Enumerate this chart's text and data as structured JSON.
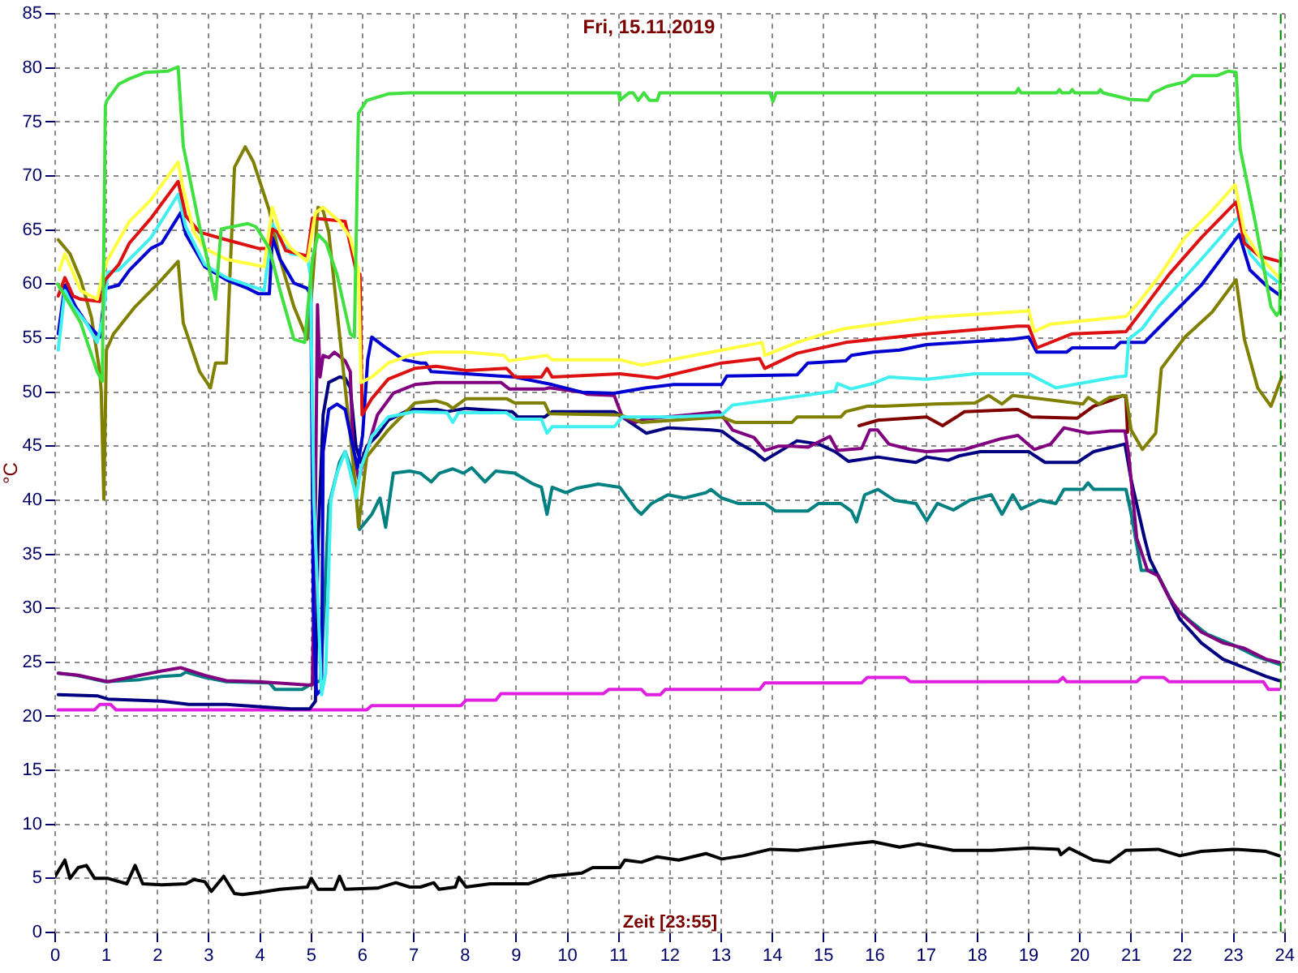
{
  "chart_data": {
    "type": "line",
    "title": "Fri, 15.11.2019",
    "xlabel": "Zeit [23:55]",
    "ylabel": "°C",
    "xlim": [
      0,
      24
    ],
    "xticks": [
      0,
      1,
      2,
      3,
      4,
      5,
      6,
      7,
      8,
      9,
      10,
      11,
      12,
      13,
      14,
      15,
      16,
      17,
      18,
      19,
      20,
      21,
      22,
      23,
      24
    ],
    "ylim": [
      0,
      85
    ],
    "yticks": [
      0,
      5,
      10,
      15,
      20,
      25,
      30,
      35,
      40,
      45,
      50,
      55,
      60,
      65,
      70,
      75,
      80,
      85
    ],
    "grid": true,
    "ref_lines": [
      {
        "axis": "x",
        "value": 23.92,
        "color": "#008000",
        "line_style": "dashed"
      }
    ],
    "series": [
      {
        "color": "#40e040",
        "x": [
          0.05,
          0.5,
          0.82,
          0.92,
          0.98,
          1.01,
          1.24,
          1.45,
          1.77,
          2.19,
          2.4,
          2.5,
          2.82,
          2.97,
          3.13,
          3.24,
          3.76,
          3.92,
          4.18,
          4.39,
          4.66,
          4.87,
          5.02,
          5.13,
          5.29,
          5.5,
          5.76,
          5.84,
          5.92,
          6.08,
          6.5,
          6.92,
          11,
          11.02,
          11.2,
          11.28,
          11.38,
          11.49,
          11.6,
          11.75,
          11.8,
          13.95,
          14.01,
          14.07,
          18.75,
          18.8,
          18.85,
          19.55,
          19.6,
          19.65,
          19.8,
          19.85,
          19.9,
          20.35,
          20.4,
          20.45,
          20.97,
          21.33,
          21.43,
          21.7,
          22.05,
          22.2,
          22.68,
          22.89,
          23.05,
          23.13,
          23.42,
          23.73,
          23.84,
          23.9,
          23.92
        ],
        "values": [
          60,
          56.4,
          51.9,
          51,
          76.5,
          77,
          78.5,
          79,
          79.6,
          79.7,
          80.1,
          72.8,
          65.3,
          62.3,
          58.6,
          65.1,
          65.6,
          65.3,
          63.3,
          59.4,
          54.9,
          54.6,
          62.3,
          64.6,
          63.8,
          60.9,
          55.4,
          55.1,
          75.8,
          77,
          77.6,
          77.7,
          77.7,
          77,
          77.7,
          77.7,
          77,
          77.7,
          77,
          77,
          77.7,
          77.7,
          76.9,
          77.7,
          77.7,
          78.1,
          77.7,
          77.7,
          78,
          77.7,
          77.7,
          78,
          77.7,
          77.7,
          78,
          77.7,
          77.1,
          77,
          77.7,
          78.3,
          78.7,
          79.3,
          79.3,
          79.7,
          79.6,
          72.5,
          65.8,
          57.9,
          57.1,
          57.5,
          63
        ]
      },
      {
        "color": "#ffff40",
        "x": [
          0.08,
          0.19,
          0.5,
          0.82,
          0.93,
          1.03,
          1.45,
          1.87,
          2.4,
          2.5,
          2.71,
          2.92,
          3.34,
          4.08,
          4.24,
          4.39,
          4.6,
          4.92,
          5.08,
          5.23,
          5.55,
          5.76,
          5.92,
          5.97,
          6.18,
          6.5,
          6.92,
          7.34,
          8.02,
          8.76,
          8.86,
          9.6,
          9.7,
          11.02,
          11.44,
          12.02,
          13.01,
          13.8,
          13.85,
          14.48,
          15.01,
          15.43,
          17.01,
          17.95,
          18.95,
          19,
          19.11,
          19.43,
          20.9,
          21.11,
          21.53,
          22.05,
          22.58,
          23.03,
          23.21,
          23.5,
          23.89
        ],
        "values": [
          61.3,
          62.8,
          59.4,
          58.6,
          60.9,
          62.3,
          65.8,
          67.8,
          71.3,
          68.8,
          64.8,
          63.3,
          62.3,
          61.6,
          67.1,
          64.8,
          63.3,
          62.1,
          66.6,
          67.1,
          65.8,
          64.3,
          61.3,
          50.9,
          51.4,
          52.7,
          53.4,
          53.7,
          53.7,
          53.4,
          52.9,
          53.4,
          53,
          53,
          52.5,
          53,
          53.9,
          54.6,
          53.4,
          54.6,
          55.4,
          55.9,
          56.9,
          57.2,
          57.5,
          57.6,
          55.6,
          56.3,
          57,
          58.1,
          60.6,
          64.3,
          66.8,
          69.2,
          64.8,
          62.6,
          60.6
        ]
      },
      {
        "color": "#dd1111",
        "x": [
          0.06,
          0.19,
          0.35,
          0.5,
          0.87,
          0.98,
          1.24,
          1.45,
          1.87,
          2.4,
          2.55,
          2.82,
          3.34,
          3.97,
          4.18,
          4.24,
          4.34,
          4.5,
          4.92,
          5.02,
          5.66,
          5.87,
          5.95,
          5.99,
          6.18,
          6.5,
          7.02,
          7.44,
          8.02,
          8.81,
          8.97,
          9.49,
          9.6,
          9.7,
          11.02,
          11.75,
          13.01,
          13.75,
          13.85,
          14.48,
          15.43,
          17.01,
          18.79,
          19,
          19.16,
          19.85,
          20.9,
          21.11,
          21.74,
          22.37,
          23.05,
          23.21,
          23.5,
          23.89
        ],
        "values": [
          58.9,
          60.6,
          58.9,
          58.6,
          58.4,
          60.4,
          61.8,
          63.8,
          66.1,
          69.5,
          66.3,
          64.8,
          64.1,
          63.3,
          63.3,
          65.1,
          64.8,
          63.1,
          62.6,
          66.1,
          65.8,
          61.3,
          60.9,
          47.9,
          49.4,
          51.2,
          52.2,
          52.4,
          52,
          52.2,
          51.4,
          51.4,
          52.2,
          51.4,
          51.7,
          51.3,
          52.7,
          53.1,
          52.2,
          53.6,
          54.6,
          55.4,
          56.1,
          56.1,
          54.1,
          55.4,
          55.6,
          56.9,
          60.9,
          64.3,
          67.6,
          63.8,
          62.6,
          62.1
        ]
      },
      {
        "color": "#40f0f0",
        "x": [
          0.06,
          0.19,
          0.35,
          0.61,
          0.82,
          0.93,
          1.03,
          1.24,
          1.87,
          2.4,
          2.55,
          2.92,
          3.34,
          4.08,
          4.24,
          4.39,
          4.6,
          4.92,
          4.98,
          5.05,
          5.2,
          5.28,
          5.38,
          5.5,
          5.66,
          5.84,
          5.87,
          5.97,
          6.18,
          6.5,
          7.02,
          7.65,
          7.76,
          7.87,
          8.81,
          8.97,
          9.49,
          9.6,
          9.7,
          10.91,
          11.07,
          12.07,
          13.01,
          13.22,
          14.48,
          15.22,
          15.27,
          15.53,
          15.96,
          16.27,
          17.01,
          17.95,
          19,
          19.53,
          20.7,
          20.9,
          20.95,
          21.22,
          21.53,
          22.37,
          23.11,
          23.32,
          23.63,
          23.89
        ],
        "values": [
          53.9,
          59.4,
          57.9,
          56.4,
          54.6,
          56.9,
          61.1,
          61.3,
          64.3,
          68.3,
          65.3,
          61.8,
          60.6,
          59.4,
          65.6,
          64.1,
          62.8,
          62.6,
          60.9,
          40,
          22,
          24,
          40,
          42.5,
          44.5,
          41,
          40.2,
          43,
          45.9,
          47.7,
          48.2,
          48.1,
          47.2,
          48.1,
          48.1,
          47.5,
          47.5,
          46.2,
          46.8,
          46.8,
          47.7,
          47.7,
          47.9,
          48.8,
          49.6,
          50.1,
          50.8,
          50.3,
          50.8,
          51.4,
          51.2,
          51.7,
          51.7,
          50.4,
          51.4,
          51.5,
          54.9,
          55.9,
          57.9,
          62.3,
          66.3,
          62.8,
          61.1,
          60.1
        ]
      },
      {
        "color": "#0000d0",
        "x": [
          0.06,
          0.19,
          0.4,
          0.61,
          0.77,
          0.87,
          0.98,
          1.24,
          1.45,
          1.87,
          2.08,
          2.45,
          2.55,
          2.92,
          3.34,
          3.76,
          3.97,
          4.18,
          4.24,
          4.39,
          4.66,
          4.92,
          4.99,
          5.04,
          5.1,
          5.2,
          5.23,
          5.34,
          5.5,
          5.66,
          5.81,
          5.9,
          6,
          6.1,
          6.18,
          6.4,
          6.8,
          7.13,
          7.23,
          7.34,
          8.02,
          8.97,
          9.7,
          10.28,
          10.91,
          11.54,
          12.07,
          13.01,
          13.11,
          14.48,
          14.69,
          15.43,
          15.54,
          15.96,
          16.48,
          17.01,
          18.69,
          19,
          19.16,
          19.74,
          19.85,
          20.68,
          20.79,
          21.26,
          21.53,
          22.37,
          23.11,
          23.32,
          23.63,
          23.89
        ],
        "values": [
          55.4,
          59.9,
          57.9,
          56.4,
          55.6,
          55.1,
          59.6,
          59.9,
          61.3,
          63.3,
          63.8,
          66.6,
          64.6,
          61.6,
          60.4,
          59.6,
          59.1,
          59.1,
          64.3,
          62.3,
          60.1,
          59.6,
          58.9,
          30,
          22,
          22.5,
          44.5,
          48.4,
          48.9,
          48.4,
          45,
          43,
          46,
          53,
          55.1,
          54.3,
          53,
          52.7,
          52.7,
          51.9,
          51.7,
          51.4,
          50.7,
          50,
          49.9,
          50.4,
          50.7,
          50.7,
          51.5,
          51.6,
          52.7,
          52.9,
          53.4,
          53.7,
          53.9,
          54.4,
          54.9,
          55.1,
          53.7,
          53.7,
          54.1,
          54.1,
          54.6,
          54.6,
          55.9,
          59.9,
          64.6,
          61.3,
          59.9,
          59
        ]
      },
      {
        "color": "#808000",
        "x": [
          0.06,
          0.29,
          0.5,
          0.71,
          0.87,
          0.9,
          0.95,
          1,
          1.14,
          1.56,
          1.98,
          2.4,
          2.5,
          2.82,
          3.03,
          3.13,
          3.34,
          3.5,
          3.71,
          3.87,
          4.18,
          4.39,
          4.66,
          4.92,
          5.02,
          5.13,
          5.23,
          5.34,
          5.87,
          5.92,
          6.08,
          6.5,
          7.02,
          7.44,
          7.65,
          7.76,
          8.02,
          8.81,
          8.97,
          9.55,
          9.65,
          11.02,
          11.44,
          13.01,
          13.27,
          14.38,
          14.48,
          15.33,
          15.43,
          15.85,
          16.17,
          17.17,
          17.95,
          18.22,
          18.48,
          18.69,
          20.06,
          20.16,
          20.37,
          20.58,
          20.9,
          21,
          21.22,
          21.48,
          21.59,
          22.05,
          22.58,
          23.05,
          23.21,
          23.47,
          23.73,
          23.94
        ],
        "values": [
          64.1,
          62.8,
          60.4,
          56.9,
          51.9,
          50,
          40.1,
          53.9,
          55.4,
          57.9,
          59.9,
          62.1,
          56.4,
          51.9,
          50.4,
          52.7,
          52.7,
          70.8,
          72.7,
          71.3,
          66.8,
          62.3,
          57.9,
          54.9,
          59.9,
          67.1,
          66.8,
          64.8,
          41,
          37.5,
          44,
          46.5,
          49,
          49.2,
          48.9,
          48.5,
          49.4,
          49.4,
          49,
          49,
          48,
          47.9,
          47.2,
          47.7,
          47.2,
          47.2,
          47.7,
          47.7,
          48.2,
          48.7,
          48.7,
          48.9,
          49,
          49.7,
          48.9,
          49.7,
          48.9,
          49.5,
          48.9,
          49.5,
          49.7,
          46.5,
          44.7,
          46.2,
          52.2,
          55.1,
          57.4,
          60.4,
          54.9,
          50.4,
          48.7,
          51.4
        ]
      },
      {
        "color": "#800080",
        "x": [
          0.06,
          0.45,
          1.03,
          1.66,
          2.08,
          2.45,
          2.92,
          3.34,
          3.97,
          4.92,
          5.02,
          5.08,
          5.12,
          5.17,
          5.23,
          5.34,
          5.45,
          5.66,
          5.76,
          5.81,
          5.92,
          6.08,
          6.29,
          6.6,
          7.02,
          7.44,
          8.7,
          8.86,
          9.55,
          9.65,
          10.28,
          10.39,
          10.91,
          11.07,
          11.33,
          11.49,
          12.59,
          12.96,
          13.22,
          13.64,
          13.85,
          14.11,
          14.38,
          14.69,
          15.12,
          15.27,
          15.74,
          15.9,
          16.05,
          16.27,
          16.69,
          17.01,
          17.75,
          18.47,
          18.79,
          19.11,
          19.43,
          19.69,
          20.16,
          20.58,
          20.88,
          20.95,
          21.11,
          21.32,
          21.53,
          21.74,
          21.95,
          22.37,
          22.79,
          23.21,
          23.63,
          23.89
        ],
        "values": [
          24,
          23.8,
          23.2,
          23.8,
          24.2,
          24.5,
          23.8,
          23.3,
          23.2,
          22.9,
          22.9,
          40,
          58.1,
          51.4,
          53.4,
          53.2,
          53.7,
          52.9,
          51.9,
          45,
          42,
          44.5,
          47.9,
          49.9,
          50.7,
          50.9,
          50.9,
          50.3,
          50.3,
          50.4,
          50,
          49.8,
          49.7,
          47.7,
          47.2,
          47.5,
          48,
          48.2,
          46.5,
          45.8,
          44.6,
          45,
          45,
          44.9,
          45.9,
          44.6,
          44.8,
          46.5,
          46.5,
          45.2,
          44.7,
          44.5,
          44.7,
          45.7,
          46,
          44.7,
          45.2,
          46.7,
          46.2,
          46.4,
          46.4,
          44.3,
          36.5,
          33.5,
          33,
          31,
          29.6,
          27.8,
          26.8,
          26.3,
          25.3,
          25
        ]
      },
      {
        "color": "#800000",
        "x": [
          15.69,
          16.06,
          17.01,
          17.32,
          17.59,
          17.75,
          18.79,
          19.06,
          19.95,
          20.27,
          20.58,
          20.84,
          20.9,
          20.93
        ],
        "values": [
          46.9,
          47.4,
          47.7,
          46.9,
          47.7,
          48.2,
          48.4,
          47.7,
          47.6,
          48.7,
          49.2,
          49.7,
          49.5,
          46.3
        ]
      },
      {
        "color": "#000080",
        "x": [
          0.06,
          0.82,
          1.03,
          2.08,
          2.61,
          3.34,
          3.97,
          4.6,
          4.97,
          5.08,
          5.13,
          5.23,
          5.34,
          5.55,
          5.66,
          5.76,
          5.87,
          5.97,
          6.08,
          6.29,
          6.5,
          6.92,
          7.44,
          7.65,
          8.02,
          8.92,
          9.03,
          9.55,
          9.7,
          10.91,
          11.07,
          11.54,
          11.96,
          12.8,
          13.01,
          13.33,
          13.64,
          13.85,
          14.17,
          14.48,
          14.9,
          15.22,
          15.48,
          16.06,
          16.48,
          16.8,
          17.01,
          17.43,
          17.64,
          18.06,
          19,
          19.32,
          19.95,
          20.27,
          20.88,
          21,
          21.26,
          21.37,
          21.74,
          21.95,
          22.37,
          22.79,
          23.21,
          23.63,
          23.89
        ],
        "values": [
          22,
          21.9,
          21.6,
          21.4,
          21.1,
          21.1,
          20.9,
          20.7,
          20.7,
          21.4,
          36,
          47.9,
          50.9,
          51.4,
          51.3,
          50.4,
          45,
          43.5,
          45,
          46,
          47.4,
          48.4,
          48.4,
          48.2,
          48.5,
          48.2,
          47.7,
          47.7,
          48.2,
          48.2,
          47.7,
          46.2,
          46.7,
          46.5,
          46.4,
          45.3,
          44.5,
          43.7,
          44.6,
          45.5,
          45.2,
          44.5,
          43.6,
          44,
          43.7,
          43.5,
          44,
          43.7,
          44.1,
          44.5,
          44.5,
          43.5,
          43.5,
          44.5,
          45.2,
          41.9,
          36.5,
          34.5,
          31,
          29,
          26.8,
          25.3,
          24.5,
          23.7,
          23.3
        ]
      },
      {
        "color": "#008080",
        "x": [
          0.06,
          0.4,
          0.61,
          0.98,
          1.66,
          2.08,
          2.45,
          2.55,
          2.92,
          3.34,
          4.18,
          4.29,
          4.82,
          4.97,
          5.18,
          5.25,
          5.34,
          5.55,
          5.66,
          5.84,
          5.94,
          6.18,
          6.34,
          6.45,
          6.6,
          6.92,
          7.13,
          7.34,
          7.5,
          7.76,
          7.97,
          8.13,
          8.39,
          8.6,
          8.97,
          9.33,
          9.49,
          9.6,
          9.7,
          9.97,
          10.17,
          10.6,
          11.02,
          11.33,
          11.44,
          11.64,
          11.96,
          12.28,
          12.7,
          12.8,
          13.01,
          13.33,
          13.85,
          14.06,
          14.69,
          14.9,
          15.33,
          15.54,
          15.64,
          15.8,
          16.06,
          16.38,
          16.8,
          17.01,
          17.22,
          17.53,
          17.85,
          18.27,
          18.48,
          18.69,
          18.85,
          19.22,
          19.53,
          19.69,
          20.06,
          20.16,
          20.27,
          20.9,
          20.99,
          21.2,
          21.42,
          21.53,
          21.85,
          22.16,
          22.48,
          23,
          23.42,
          23.89
        ],
        "values": [
          24,
          23.8,
          23.6,
          23.2,
          23.4,
          23.7,
          23.8,
          24.1,
          23.6,
          23.2,
          23.1,
          22.5,
          22.5,
          22.9,
          23.3,
          30,
          39.5,
          43.5,
          44.5,
          42,
          37.3,
          38.7,
          40.2,
          37.5,
          42.5,
          42.7,
          42.5,
          41.7,
          42.5,
          42.9,
          42.5,
          43,
          41.7,
          42.7,
          42.5,
          41.5,
          41.2,
          38.7,
          41.2,
          40.7,
          41.1,
          41.5,
          41.2,
          39.2,
          38.7,
          39.7,
          40.5,
          40.2,
          40.7,
          41,
          40.2,
          39.7,
          39.7,
          39,
          39,
          39.7,
          39.7,
          39,
          38,
          40.5,
          41,
          40,
          39.7,
          38.1,
          39.7,
          39.1,
          40,
          40.5,
          38.7,
          40.5,
          39.2,
          40,
          39.7,
          41,
          41,
          41.6,
          41,
          41,
          39,
          33.5,
          33.5,
          33,
          30.1,
          28.8,
          27.6,
          26.6,
          25.6,
          24.8
        ]
      },
      {
        "color": "#e020e0",
        "x": [
          0.06,
          0.77,
          0.87,
          1.08,
          1.19,
          6.08,
          6.18,
          7.92,
          8.02,
          8.6,
          8.7,
          10.7,
          10.81,
          11.44,
          11.54,
          11.81,
          11.91,
          13.75,
          13.85,
          15.74,
          15.85,
          16.59,
          16.69,
          19.58,
          19.67,
          19.74,
          21.11,
          21.2,
          21.64,
          21.74,
          23.58,
          23.68,
          23.89
        ],
        "values": [
          20.6,
          20.6,
          21.1,
          21.1,
          20.6,
          20.6,
          21,
          21,
          21.5,
          21.5,
          22.1,
          22.1,
          22.5,
          22.5,
          22,
          22,
          22.5,
          22.5,
          23.1,
          23.1,
          23.6,
          23.6,
          23.2,
          23.2,
          23.6,
          23.2,
          23.2,
          23.6,
          23.6,
          23.2,
          23.2,
          22.5,
          22.5
        ]
      },
      {
        "color": "#000000",
        "x": [
          0,
          0.19,
          0.29,
          0.45,
          0.61,
          0.77,
          1.03,
          1.4,
          1.56,
          1.71,
          2.08,
          2.55,
          2.71,
          2.92,
          3.05,
          3.29,
          3.5,
          3.66,
          3.97,
          4.39,
          4.92,
          5,
          5.13,
          5.45,
          5.55,
          5.66,
          6.29,
          6.65,
          6.92,
          7.13,
          7.39,
          7.49,
          7.81,
          7.88,
          8.02,
          8.49,
          9.23,
          9.65,
          10.28,
          10.49,
          11.02,
          11.12,
          11.44,
          11.75,
          12.17,
          12.7,
          13.01,
          13.43,
          13.96,
          14.48,
          15.01,
          15.54,
          15.96,
          16.48,
          16.85,
          17.53,
          18.27,
          19,
          19.58,
          19.63,
          19.79,
          20.26,
          20.58,
          20.9,
          21.53,
          21.95,
          22.37,
          23,
          23.63,
          23.89
        ],
        "values": [
          5.2,
          6.7,
          5,
          6,
          6.2,
          5,
          5,
          4.5,
          6.2,
          4.5,
          4.4,
          4.5,
          4.9,
          4.7,
          3.8,
          5.2,
          3.6,
          3.5,
          3.7,
          4,
          4.2,
          5,
          4,
          4,
          5.2,
          4,
          4.1,
          4.6,
          4.2,
          4.2,
          4.6,
          4,
          4.2,
          5.1,
          4.2,
          4.5,
          4.5,
          5.2,
          5.5,
          6,
          6,
          6.7,
          6.5,
          7,
          6.7,
          7.3,
          6.8,
          7.1,
          7.7,
          7.6,
          7.9,
          8.2,
          8.4,
          7.9,
          8.2,
          7.6,
          7.6,
          7.8,
          7.7,
          7.2,
          7.8,
          6.7,
          6.5,
          7.6,
          7.7,
          7.1,
          7.5,
          7.7,
          7.5,
          7.1
        ]
      }
    ]
  }
}
